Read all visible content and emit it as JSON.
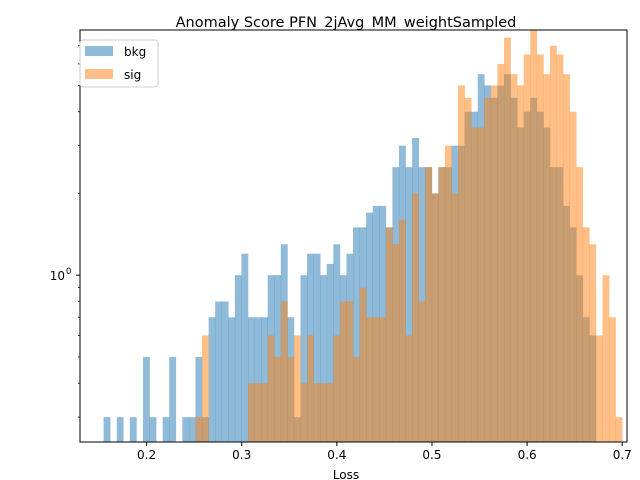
{
  "chart_data": {
    "type": "histogram",
    "title": "Anomaly Score PFN_2jAvg_MM_weightSampled",
    "xlabel": "Loss",
    "ylabel": "",
    "xlim": [
      0.13,
      0.705
    ],
    "ylim": [
      0.243,
      8.0
    ],
    "yscale": "log",
    "grid": false,
    "legend_position": "upper-left",
    "x_ticks": [
      0.2,
      0.3,
      0.4,
      0.5,
      0.6,
      0.7
    ],
    "x_tick_labels": [
      "0.2",
      "0.3",
      "0.4",
      "0.5",
      "0.6",
      "0.7"
    ],
    "y_ticks": [
      1
    ],
    "y_tick_labels": [
      "10^0"
    ],
    "y_tick_base": "10",
    "y_tick_exp": "0",
    "y_minor_ticks": [
      0.3,
      0.4,
      0.5,
      0.6,
      0.7,
      0.8,
      0.9,
      2,
      3,
      4,
      5,
      6,
      7
    ],
    "series": [
      {
        "name": "bkg",
        "color": "#1f77b4",
        "opacity": 0.5,
        "bars": [
          [
            0.1548,
            0.1617,
            0.3
          ],
          [
            0.1687,
            0.1755,
            0.3
          ],
          [
            0.1824,
            0.1893,
            0.3
          ],
          [
            0.1962,
            0.2031,
            0.5
          ],
          [
            0.2031,
            0.21,
            0.3
          ],
          [
            0.2169,
            0.2238,
            0.3
          ],
          [
            0.2238,
            0.2307,
            0.5
          ],
          [
            0.2376,
            0.2445,
            0.3
          ],
          [
            0.2445,
            0.2514,
            0.3
          ],
          [
            0.2514,
            0.2583,
            0.5
          ],
          [
            0.2583,
            0.2652,
            0.3
          ],
          [
            0.2652,
            0.2721,
            0.7
          ],
          [
            0.2721,
            0.279,
            0.8
          ],
          [
            0.279,
            0.2859,
            0.8
          ],
          [
            0.2859,
            0.2928,
            0.7
          ],
          [
            0.2928,
            0.2997,
            1.0
          ],
          [
            0.2997,
            0.3066,
            1.2
          ],
          [
            0.3066,
            0.3135,
            0.7
          ],
          [
            0.3135,
            0.3204,
            0.7
          ],
          [
            0.3204,
            0.3273,
            0.7
          ],
          [
            0.3273,
            0.3342,
            1.0
          ],
          [
            0.3342,
            0.3411,
            1.0
          ],
          [
            0.3411,
            0.348,
            1.3
          ],
          [
            0.348,
            0.3549,
            0.7
          ],
          [
            0.3549,
            0.3618,
            0.3
          ],
          [
            0.3618,
            0.3687,
            1.0
          ],
          [
            0.3687,
            0.3756,
            1.2
          ],
          [
            0.3756,
            0.3825,
            1.2
          ],
          [
            0.3825,
            0.3894,
            1.0
          ],
          [
            0.3894,
            0.3963,
            1.1
          ],
          [
            0.3963,
            0.4032,
            1.3
          ],
          [
            0.4032,
            0.4101,
            1.0
          ],
          [
            0.4101,
            0.417,
            1.2
          ],
          [
            0.417,
            0.4239,
            1.5
          ],
          [
            0.4239,
            0.4308,
            1.5
          ],
          [
            0.4308,
            0.4377,
            1.7
          ],
          [
            0.4377,
            0.4446,
            1.8
          ],
          [
            0.4446,
            0.4515,
            1.8
          ],
          [
            0.4515,
            0.4584,
            1.5
          ],
          [
            0.4584,
            0.4653,
            2.5
          ],
          [
            0.4653,
            0.4722,
            3.0
          ],
          [
            0.4722,
            0.4791,
            2.5
          ],
          [
            0.4791,
            0.486,
            3.2
          ],
          [
            0.486,
            0.4929,
            2.5
          ],
          [
            0.4929,
            0.4998,
            2.5
          ],
          [
            0.4998,
            0.5067,
            2.0
          ],
          [
            0.5067,
            0.5136,
            2.5
          ],
          [
            0.5136,
            0.5205,
            2.5
          ],
          [
            0.5205,
            0.5274,
            3.0
          ],
          [
            0.5274,
            0.5343,
            3.0
          ],
          [
            0.5343,
            0.5412,
            4.0
          ],
          [
            0.5412,
            0.5481,
            4.0
          ],
          [
            0.5481,
            0.555,
            5.5
          ],
          [
            0.555,
            0.5619,
            5.0
          ],
          [
            0.5619,
            0.5688,
            4.5
          ],
          [
            0.5688,
            0.5757,
            5.0
          ],
          [
            0.5757,
            0.5826,
            5.5
          ],
          [
            0.5826,
            0.5895,
            4.5
          ],
          [
            0.5895,
            0.5964,
            3.5
          ],
          [
            0.5964,
            0.6033,
            4.0
          ],
          [
            0.6033,
            0.6102,
            4.5
          ],
          [
            0.6102,
            0.6171,
            4.0
          ],
          [
            0.6171,
            0.624,
            3.5
          ],
          [
            0.624,
            0.6309,
            2.5
          ],
          [
            0.6309,
            0.6378,
            2.5
          ],
          [
            0.6378,
            0.6447,
            1.8
          ],
          [
            0.6447,
            0.6516,
            1.5
          ],
          [
            0.6516,
            0.6585,
            1.0
          ],
          [
            0.6585,
            0.6654,
            0.7
          ],
          [
            0.6654,
            0.6723,
            0.6
          ]
        ]
      },
      {
        "name": "sig",
        "color": "#ff7f0e",
        "opacity": 0.5,
        "bars": [
          [
            0.2514,
            0.2583,
            0.3
          ],
          [
            0.2583,
            0.2652,
            0.6
          ],
          [
            0.3066,
            0.3135,
            0.4
          ],
          [
            0.3135,
            0.3204,
            0.4
          ],
          [
            0.3204,
            0.3273,
            0.4
          ],
          [
            0.3273,
            0.3342,
            0.6
          ],
          [
            0.3342,
            0.3411,
            0.5
          ],
          [
            0.3411,
            0.348,
            0.8
          ],
          [
            0.348,
            0.3549,
            0.5
          ],
          [
            0.3549,
            0.3618,
            0.6
          ],
          [
            0.3618,
            0.3687,
            0.4
          ],
          [
            0.3687,
            0.3756,
            0.6
          ],
          [
            0.3756,
            0.3825,
            0.4
          ],
          [
            0.3825,
            0.3894,
            0.4
          ],
          [
            0.3894,
            0.3963,
            0.4
          ],
          [
            0.3963,
            0.4032,
            0.6
          ],
          [
            0.4032,
            0.4101,
            0.8
          ],
          [
            0.4101,
            0.417,
            0.8
          ],
          [
            0.417,
            0.4239,
            0.5
          ],
          [
            0.4239,
            0.4308,
            0.9
          ],
          [
            0.4308,
            0.4377,
            0.7
          ],
          [
            0.4377,
            0.4446,
            0.7
          ],
          [
            0.4446,
            0.4515,
            0.7
          ],
          [
            0.4515,
            0.4584,
            1.5
          ],
          [
            0.4584,
            0.4653,
            1.3
          ],
          [
            0.4653,
            0.4722,
            1.6
          ],
          [
            0.4722,
            0.4791,
            0.6
          ],
          [
            0.4791,
            0.486,
            2.0
          ],
          [
            0.486,
            0.4929,
            0.8
          ],
          [
            0.4929,
            0.4998,
            2.5
          ],
          [
            0.4998,
            0.5067,
            2.0
          ],
          [
            0.5067,
            0.5136,
            2.5
          ],
          [
            0.5136,
            0.5205,
            3.0
          ],
          [
            0.5205,
            0.5274,
            2.0
          ],
          [
            0.5274,
            0.5343,
            5.0
          ],
          [
            0.5343,
            0.5412,
            4.5
          ],
          [
            0.5412,
            0.5481,
            3.5
          ],
          [
            0.5481,
            0.555,
            3.5
          ],
          [
            0.555,
            0.5619,
            4.5
          ],
          [
            0.5619,
            0.5688,
            5.0
          ],
          [
            0.5688,
            0.5757,
            6.0
          ],
          [
            0.5757,
            0.5826,
            7.5
          ],
          [
            0.5826,
            0.5895,
            5.5
          ],
          [
            0.5895,
            0.5964,
            5.0
          ],
          [
            0.5964,
            0.6033,
            6.5
          ],
          [
            0.6033,
            0.6102,
            8.0
          ],
          [
            0.6102,
            0.6171,
            6.5
          ],
          [
            0.6171,
            0.624,
            5.5
          ],
          [
            0.624,
            0.6309,
            7.0
          ],
          [
            0.6309,
            0.6378,
            6.5
          ],
          [
            0.6378,
            0.6447,
            5.5
          ],
          [
            0.6447,
            0.6516,
            4.0
          ],
          [
            0.6516,
            0.6585,
            2.5
          ],
          [
            0.6585,
            0.6654,
            1.5
          ],
          [
            0.6654,
            0.6723,
            1.3
          ],
          [
            0.6723,
            0.6792,
            0.6
          ],
          [
            0.6792,
            0.6861,
            1.0
          ],
          [
            0.6861,
            0.693,
            0.7
          ],
          [
            0.693,
            0.6999,
            0.3
          ]
        ]
      }
    ]
  }
}
